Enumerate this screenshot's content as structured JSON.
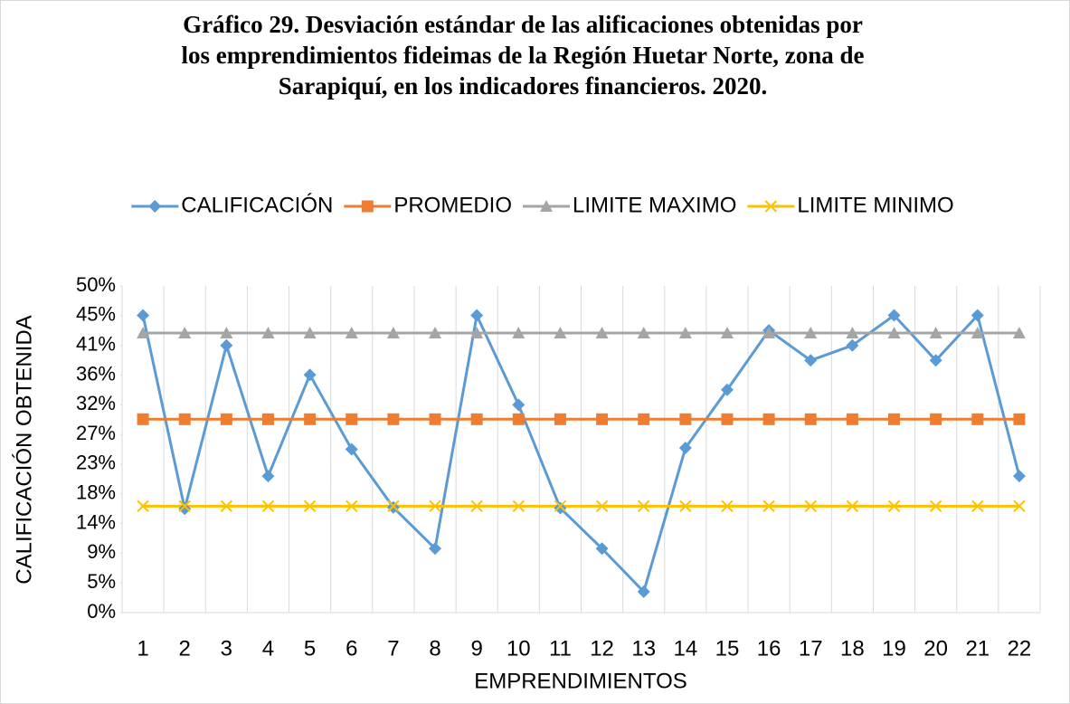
{
  "chart_data": {
    "type": "line",
    "title": "Gráfico 29. Desviación estándar de las alificaciones obtenidas por los emprendimientos fideimas de la Región Huetar Norte, zona de Sarapiquí, en los indicadores financieros. 2020.",
    "x_label": "EMPRENDIMIENTOS",
    "y_label": "CALIFICACIÓN OBTENIDA",
    "categories": [
      "1",
      "2",
      "3",
      "4",
      "5",
      "6",
      "7",
      "8",
      "9",
      "10",
      "11",
      "12",
      "13",
      "14",
      "15",
      "16",
      "17",
      "18",
      "19",
      "20",
      "21",
      "22"
    ],
    "series": [
      {
        "name": "CALIFICACIÓN",
        "color": "#5b9bd5",
        "marker": "diamond",
        "values": [
          45.5,
          15.9,
          40.9,
          20.9,
          36.4,
          25.0,
          16.1,
          9.8,
          45.5,
          31.8,
          16.0,
          9.8,
          3.2,
          25.2,
          34.1,
          43.2,
          38.6,
          40.9,
          45.5,
          38.6,
          45.5,
          20.9
        ]
      },
      {
        "name": "PROMEDIO",
        "color": "#ed7d31",
        "marker": "square",
        "values": [
          29.6,
          29.6,
          29.6,
          29.6,
          29.6,
          29.6,
          29.6,
          29.6,
          29.6,
          29.6,
          29.6,
          29.6,
          29.6,
          29.6,
          29.6,
          29.6,
          29.6,
          29.6,
          29.6,
          29.6,
          29.6,
          29.6
        ]
      },
      {
        "name": "LIMITE MAXIMO",
        "color": "#a5a5a5",
        "marker": "triangle",
        "values": [
          42.8,
          42.8,
          42.8,
          42.8,
          42.8,
          42.8,
          42.8,
          42.8,
          42.8,
          42.8,
          42.8,
          42.8,
          42.8,
          42.8,
          42.8,
          42.8,
          42.8,
          42.8,
          42.8,
          42.8,
          42.8,
          42.8
        ]
      },
      {
        "name": "LIMITE MINIMO",
        "color": "#ffc000",
        "marker": "x",
        "values": [
          16.3,
          16.3,
          16.3,
          16.3,
          16.3,
          16.3,
          16.3,
          16.3,
          16.3,
          16.3,
          16.3,
          16.3,
          16.3,
          16.3,
          16.3,
          16.3,
          16.3,
          16.3,
          16.3,
          16.3,
          16.3,
          16.3
        ]
      }
    ],
    "ylim": [
      0,
      50
    ],
    "yticks": [
      {
        "value": 0,
        "label": "0%"
      },
      {
        "value": 4.5455,
        "label": "5%"
      },
      {
        "value": 9.0909,
        "label": "9%"
      },
      {
        "value": 13.6364,
        "label": "14%"
      },
      {
        "value": 18.1818,
        "label": "18%"
      },
      {
        "value": 22.7273,
        "label": "23%"
      },
      {
        "value": 27.2727,
        "label": "27%"
      },
      {
        "value": 31.8182,
        "label": "32%"
      },
      {
        "value": 36.3636,
        "label": "36%"
      },
      {
        "value": 40.9091,
        "label": "41%"
      },
      {
        "value": 45.4545,
        "label": "45%"
      },
      {
        "value": 50,
        "label": "50%"
      }
    ],
    "legend": "top",
    "grid": "vertical"
  }
}
